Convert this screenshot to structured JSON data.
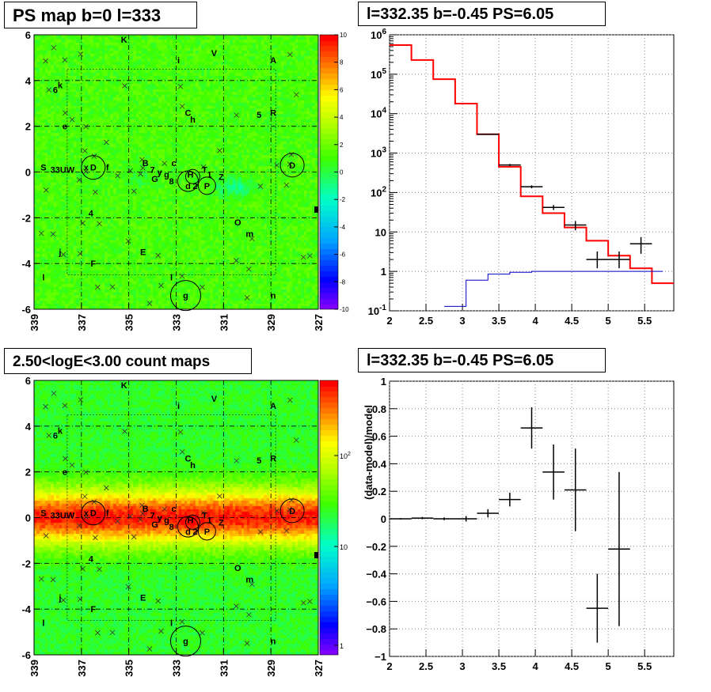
{
  "panels": {
    "tl_title": "PS map b=0 l=333",
    "tr_title": "l=332.35 b=-0.45 PS=6.05",
    "bl_title": "2.50<logE<3.00 count maps",
    "br_title": "l=332.35 b=-0.45 PS=6.05"
  },
  "colors": {
    "model_line": "#ff0000",
    "bkg_line": "#0000cc",
    "data_marker": "#000000",
    "grid": "#888888"
  },
  "chart_data": [
    {
      "type": "heatmap",
      "title": "PS map b=0 l=333",
      "xlabel": "",
      "ylabel": "",
      "xlim": [
        339,
        327
      ],
      "ylim": [
        -6,
        6
      ],
      "xticks": [
        339,
        337,
        335,
        333,
        331,
        329,
        327
      ],
      "yticks": [
        -6,
        -4,
        -2,
        0,
        2,
        4,
        6
      ],
      "colorbar": {
        "min": -10,
        "max": 10,
        "ticks": [
          -10,
          -8,
          -6,
          -4,
          -2,
          0,
          2,
          4,
          6,
          8,
          10
        ]
      },
      "sources": [
        {
          "label": "K",
          "l": 335.2,
          "b": 5.8
        },
        {
          "label": "i",
          "l": 332.9,
          "b": 4.9
        },
        {
          "label": "V",
          "l": 331.4,
          "b": 5.2
        },
        {
          "label": "A",
          "l": 328.9,
          "b": 4.9
        },
        {
          "label": "6",
          "l": 338.1,
          "b": 3.6
        },
        {
          "label": "k",
          "l": 337.9,
          "b": 3.8
        },
        {
          "label": "C",
          "l": 332.5,
          "b": 2.6
        },
        {
          "label": "h",
          "l": 332.3,
          "b": 2.3
        },
        {
          "label": "5",
          "l": 329.5,
          "b": 2.5
        },
        {
          "label": "R",
          "l": 328.9,
          "b": 2.6
        },
        {
          "label": "e",
          "l": 337.7,
          "b": 2.0
        },
        {
          "label": "S",
          "l": 338.6,
          "b": 0.2
        },
        {
          "label": "33UW",
          "l": 337.8,
          "b": 0.1
        },
        {
          "label": "x",
          "l": 336.8,
          "b": 0.2
        },
        {
          "label": "D",
          "l": 336.5,
          "b": 0.2
        },
        {
          "label": "f",
          "l": 335.9,
          "b": 0.2
        },
        {
          "label": "B",
          "l": 334.3,
          "b": 0.4
        },
        {
          "label": "7",
          "l": 334.0,
          "b": 0.1
        },
        {
          "label": "y",
          "l": 333.7,
          "b": 0.0
        },
        {
          "label": "g",
          "l": 333.4,
          "b": -0.1
        },
        {
          "label": "c",
          "l": 333.1,
          "b": 0.4
        },
        {
          "label": "G",
          "l": 333.9,
          "b": -0.3
        },
        {
          "label": "8",
          "l": 333.2,
          "b": -0.4
        },
        {
          "label": "H",
          "l": 332.4,
          "b": -0.1
        },
        {
          "label": "T",
          "l": 331.8,
          "b": 0.1
        },
        {
          "label": "1",
          "l": 331.6,
          "b": -0.1
        },
        {
          "label": "d",
          "l": 332.5,
          "b": -0.6
        },
        {
          "label": "2",
          "l": 332.2,
          "b": -0.6
        },
        {
          "label": "P",
          "l": 331.7,
          "b": -0.6
        },
        {
          "label": "Z",
          "l": 331.1,
          "b": -0.2
        },
        {
          "label": "D",
          "l": 328.1,
          "b": 0.3
        },
        {
          "label": "4",
          "l": 336.6,
          "b": -1.8
        },
        {
          "label": "O",
          "l": 330.4,
          "b": -2.2
        },
        {
          "label": "m",
          "l": 329.9,
          "b": -2.7
        },
        {
          "label": "j",
          "l": 337.9,
          "b": -3.5
        },
        {
          "label": "F",
          "l": 336.5,
          "b": -4.0
        },
        {
          "label": "E",
          "l": 334.4,
          "b": -3.5
        },
        {
          "label": "l",
          "l": 338.6,
          "b": -4.6
        },
        {
          "label": "l",
          "l": 333.2,
          "b": -4.6
        },
        {
          "label": "g",
          "l": 332.6,
          "b": -5.4
        },
        {
          "label": "n",
          "l": 328.9,
          "b": -5.4
        }
      ]
    },
    {
      "type": "line",
      "title": "l=332.35 b=-0.45 PS=6.05",
      "xlabel": "",
      "ylabel": "",
      "xlim": [
        2.0,
        5.9
      ],
      "ylim": [
        0.1,
        1000000
      ],
      "yscale": "log",
      "xticks": [
        "2",
        "2.5",
        "3",
        "3.5",
        "4",
        "4.5",
        "5",
        "5.5"
      ],
      "yticks": [
        "10^-1",
        "1",
        "10",
        "10^2",
        "10^3",
        "10^4",
        "10^5",
        "10^6"
      ],
      "grid": true,
      "series": [
        {
          "x": [
            2.15,
            2.45,
            2.75,
            3.05,
            3.35,
            3.65,
            3.95,
            4.25,
            4.55,
            4.85,
            5.15,
            5.45,
            5.75
          ],
          "values": [
            550000,
            230000,
            75000,
            18000,
            3000,
            450,
            80,
            30,
            13,
            6,
            2.5,
            1.2,
            0.5
          ]
        },
        {
          "x": [
            2.9,
            3.2,
            3.5,
            3.8,
            4.1,
            4.4,
            4.7,
            5.0,
            5.3,
            5.6
          ],
          "values": [
            0.13,
            0.6,
            0.85,
            0.95,
            1.0,
            1.0,
            1.0,
            1.0,
            1.0,
            1.0
          ]
        },
        {
          "x": [
            3.35,
            3.65,
            3.95,
            4.25,
            4.55,
            4.85,
            5.15,
            5.45
          ],
          "values": [
            3000,
            500,
            140,
            42,
            15,
            2,
            2,
            5
          ],
          "yerr_lo": [
            2950,
            470,
            128,
            36,
            11,
            1.2,
            1.2,
            2.8
          ],
          "yerr_hi": [
            3060,
            530,
            152,
            48,
            19,
            3.2,
            3.2,
            7.4
          ]
        }
      ]
    },
    {
      "type": "heatmap",
      "title": "2.50<logE<3.00 count maps",
      "xlabel": "",
      "ylabel": "",
      "xlim": [
        339,
        327
      ],
      "ylim": [
        -6,
        6
      ],
      "xticks": [
        339,
        337,
        335,
        333,
        331,
        329,
        327
      ],
      "yticks": [
        -6,
        -4,
        -2,
        0,
        2,
        4,
        6
      ],
      "colorbar": {
        "scale": "log",
        "ticks": [
          "1",
          "10",
          "10^2"
        ]
      }
    },
    {
      "type": "scatter",
      "title": "l=332.35 b=-0.45 PS=6.05",
      "xlabel": "",
      "ylabel": "(data-model)/model",
      "xlim": [
        2.0,
        5.9
      ],
      "ylim": [
        -1,
        1
      ],
      "xticks": [
        "2",
        "2.5",
        "3",
        "3.5",
        "4",
        "4.5",
        "5",
        "5.5"
      ],
      "yticks": [
        "-1",
        "-0.8",
        "-0.6",
        "-0.4",
        "-0.2",
        "0",
        "0.2",
        "0.4",
        "0.6",
        "0.8",
        "1"
      ],
      "grid": true,
      "x": [
        2.15,
        2.45,
        2.75,
        3.05,
        3.35,
        3.65,
        3.95,
        4.25,
        4.55,
        4.85,
        5.15
      ],
      "values": [
        0.0,
        0.005,
        0.0,
        0.0,
        0.04,
        0.14,
        0.66,
        0.34,
        0.21,
        -0.65,
        -0.22
      ],
      "yerr": [
        0.005,
        0.008,
        0.01,
        0.02,
        0.03,
        0.05,
        0.15,
        0.2,
        0.3,
        0.25,
        0.56
      ]
    }
  ]
}
